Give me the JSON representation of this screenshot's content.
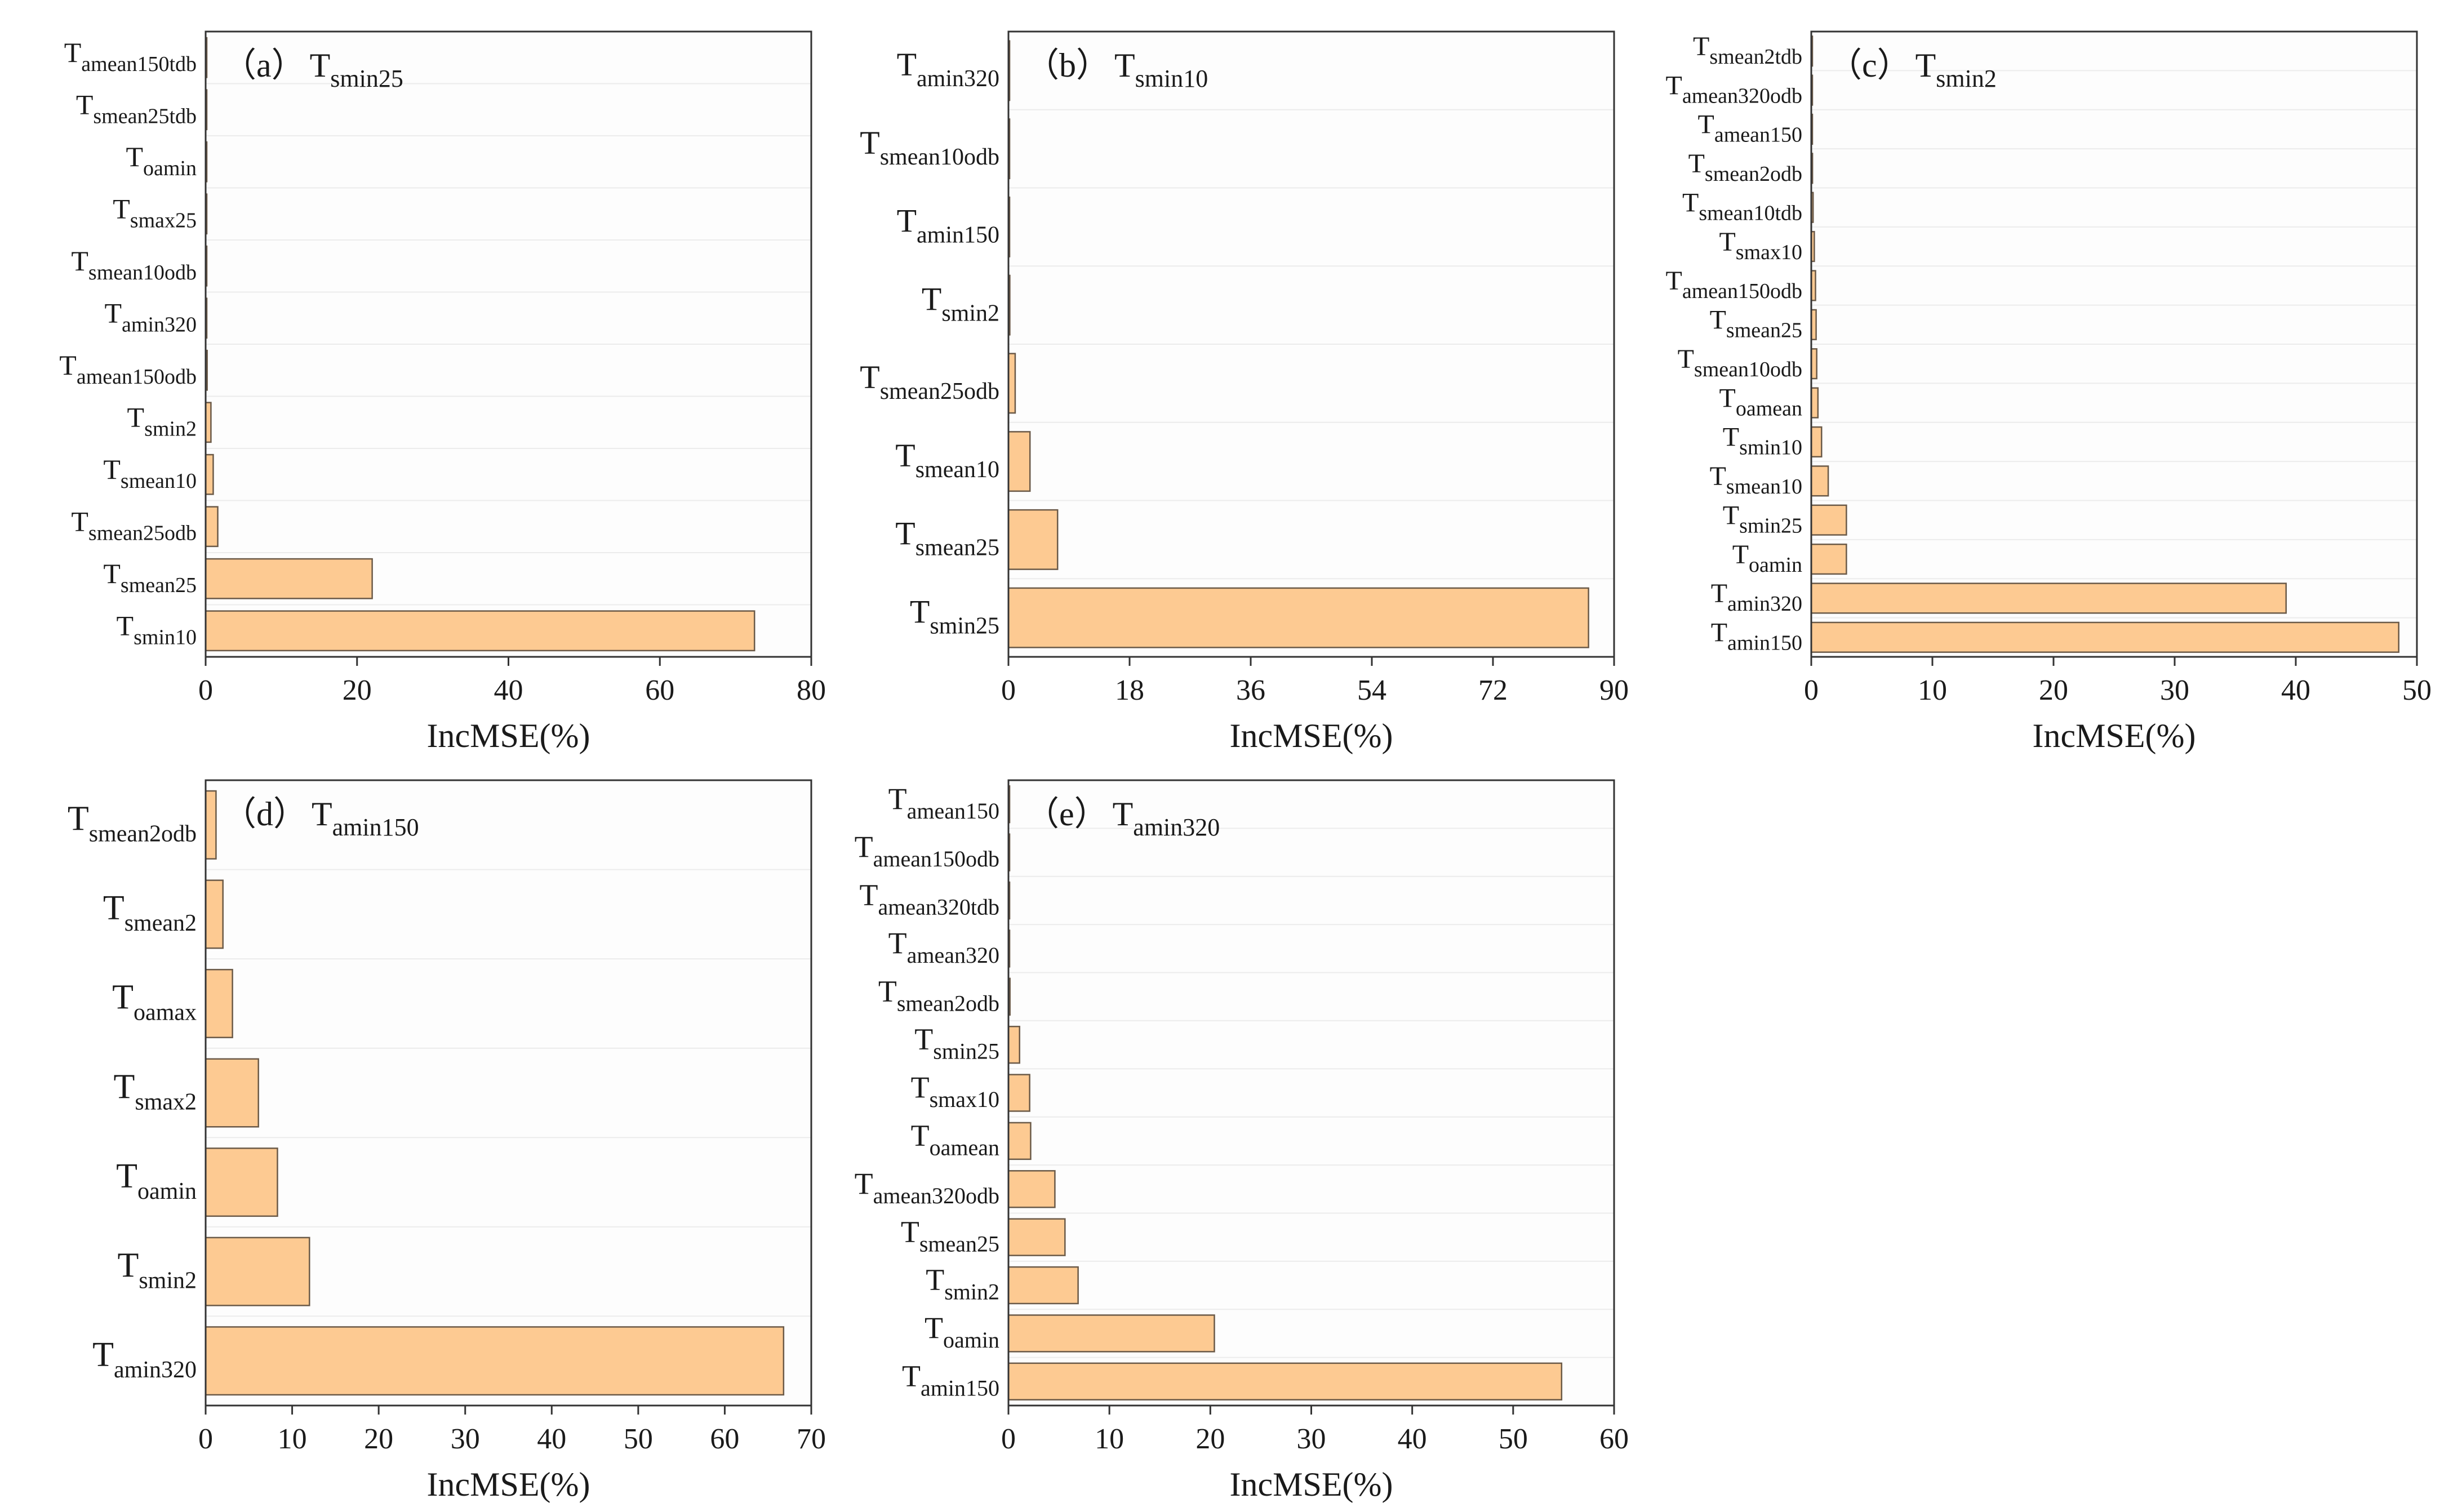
{
  "colors": {
    "bar_fill": "#fdca92",
    "bar_stroke": "#6b5a48",
    "axis": "#333333",
    "grid": "#ececec",
    "text": "#1a1a1a"
  },
  "chart_data": [
    {
      "type": "bar",
      "orientation": "horizontal",
      "panel_label": "（a）",
      "title_main": "T",
      "title_sub": "smin25",
      "xlabel": "IncMSE(%)",
      "xlim": [
        0,
        80
      ],
      "xticks": [
        0,
        20,
        40,
        60,
        80
      ],
      "categories": [
        {
          "main": "T",
          "sub": "amean150tdb",
          "value": 0.05
        },
        {
          "main": "T",
          "sub": "smean25tdb",
          "value": 0.05
        },
        {
          "main": "T",
          "sub": "oamin",
          "value": 0.05
        },
        {
          "main": "T",
          "sub": "smax25",
          "value": 0.08
        },
        {
          "main": "T",
          "sub": "smean10odb",
          "value": 0.1
        },
        {
          "main": "T",
          "sub": "amin320",
          "value": 0.15
        },
        {
          "main": "T",
          "sub": "amean150odb",
          "value": 0.2
        },
        {
          "main": "T",
          "sub": "smin2",
          "value": 0.7
        },
        {
          "main": "T",
          "sub": "smean10",
          "value": 1.0
        },
        {
          "main": "T",
          "sub": "smean25odb",
          "value": 1.6
        },
        {
          "main": "T",
          "sub": "smean25",
          "value": 22
        },
        {
          "main": "T",
          "sub": "smin10",
          "value": 72.5
        }
      ]
    },
    {
      "type": "bar",
      "orientation": "horizontal",
      "panel_label": "（b）",
      "title_main": "T",
      "title_sub": "smin10",
      "xlabel": "IncMSE(%)",
      "xlim": [
        0,
        90
      ],
      "xticks": [
        0,
        18,
        36,
        54,
        72,
        90
      ],
      "categories": [
        {
          "main": "T",
          "sub": "amin320",
          "value": 0.05
        },
        {
          "main": "T",
          "sub": "smean10odb",
          "value": 0.08
        },
        {
          "main": "T",
          "sub": "amin150",
          "value": 0.1
        },
        {
          "main": "T",
          "sub": "smin2",
          "value": 0.2
        },
        {
          "main": "T",
          "sub": "smean25odb",
          "value": 1.0
        },
        {
          "main": "T",
          "sub": "smean10",
          "value": 3.2
        },
        {
          "main": "T",
          "sub": "smean25",
          "value": 7.3
        },
        {
          "main": "T",
          "sub": "smin25",
          "value": 86.2
        }
      ]
    },
    {
      "type": "bar",
      "orientation": "horizontal",
      "panel_label": "（c）",
      "title_main": "T",
      "title_sub": "smin2",
      "xlabel": "IncMSE(%)",
      "xlim": [
        0,
        50
      ],
      "xticks": [
        0,
        10,
        20,
        30,
        40,
        50
      ],
      "categories": [
        {
          "main": "T",
          "sub": "smean2tdb",
          "value": 0.05
        },
        {
          "main": "T",
          "sub": "amean320odb",
          "value": 0.05
        },
        {
          "main": "T",
          "sub": "amean150",
          "value": 0.08
        },
        {
          "main": "T",
          "sub": "smean2odb",
          "value": 0.1
        },
        {
          "main": "T",
          "sub": "smean10tdb",
          "value": 0.15
        },
        {
          "main": "T",
          "sub": "smax10",
          "value": 0.25
        },
        {
          "main": "T",
          "sub": "amean150odb",
          "value": 0.35
        },
        {
          "main": "T",
          "sub": "smean25",
          "value": 0.4
        },
        {
          "main": "T",
          "sub": "smean10odb",
          "value": 0.45
        },
        {
          "main": "T",
          "sub": "oamean",
          "value": 0.55
        },
        {
          "main": "T",
          "sub": "smin10",
          "value": 0.85
        },
        {
          "main": "T",
          "sub": "smean10",
          "value": 1.4
        },
        {
          "main": "T",
          "sub": "smin25",
          "value": 2.9
        },
        {
          "main": "T",
          "sub": "oamin",
          "value": 2.9
        },
        {
          "main": "T",
          "sub": "amin320",
          "value": 39.2
        },
        {
          "main": "T",
          "sub": "amin150",
          "value": 48.5
        }
      ]
    },
    {
      "type": "bar",
      "orientation": "horizontal",
      "panel_label": "（d）",
      "title_main": "T",
      "title_sub": "amin150",
      "xlabel": "IncMSE(%)",
      "xlim": [
        0,
        70
      ],
      "xticks": [
        0,
        10,
        20,
        30,
        40,
        50,
        60,
        70
      ],
      "categories": [
        {
          "main": "T",
          "sub": "smean2odb",
          "value": 1.2
        },
        {
          "main": "T",
          "sub": "smean2",
          "value": 2.0
        },
        {
          "main": "T",
          "sub": "oamax",
          "value": 3.1
        },
        {
          "main": "T",
          "sub": "smax2",
          "value": 6.1
        },
        {
          "main": "T",
          "sub": "oamin",
          "value": 8.3
        },
        {
          "main": "T",
          "sub": "smin2",
          "value": 12.0
        },
        {
          "main": "T",
          "sub": "amin320",
          "value": 66.8
        }
      ]
    },
    {
      "type": "bar",
      "orientation": "horizontal",
      "panel_label": "（e）",
      "title_main": "T",
      "title_sub": "amin320",
      "xlabel": "IncMSE(%)",
      "xlim": [
        0,
        60
      ],
      "xticks": [
        0,
        10,
        20,
        30,
        40,
        50,
        60
      ],
      "categories": [
        {
          "main": "T",
          "sub": "amean150",
          "value": 0.05
        },
        {
          "main": "T",
          "sub": "amean150odb",
          "value": 0.05
        },
        {
          "main": "T",
          "sub": "amean320tdb",
          "value": 0.08
        },
        {
          "main": "T",
          "sub": "amean320",
          "value": 0.1
        },
        {
          "main": "T",
          "sub": "smean2odb",
          "value": 0.15
        },
        {
          "main": "T",
          "sub": "smin25",
          "value": 1.1
        },
        {
          "main": "T",
          "sub": "smax10",
          "value": 2.1
        },
        {
          "main": "T",
          "sub": "oamean",
          "value": 2.2
        },
        {
          "main": "T",
          "sub": "amean320odb",
          "value": 4.6
        },
        {
          "main": "T",
          "sub": "smean25",
          "value": 5.6
        },
        {
          "main": "T",
          "sub": "smin2",
          "value": 6.9
        },
        {
          "main": "T",
          "sub": "oamin",
          "value": 20.4
        },
        {
          "main": "T",
          "sub": "amin150",
          "value": 54.8
        }
      ]
    }
  ]
}
